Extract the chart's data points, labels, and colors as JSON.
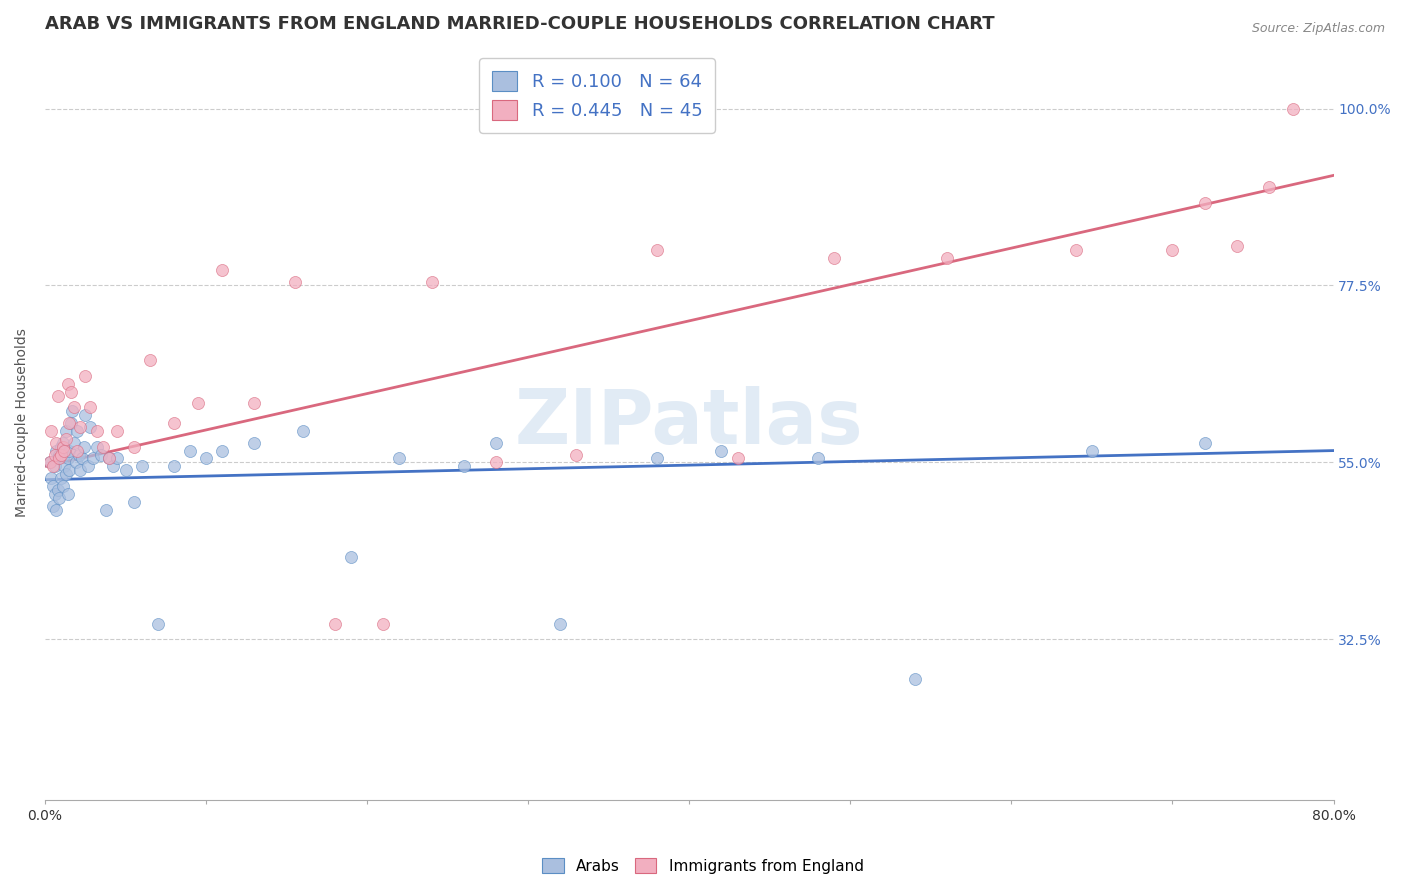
{
  "title": "ARAB VS IMMIGRANTS FROM ENGLAND MARRIED-COUPLE HOUSEHOLDS CORRELATION CHART",
  "source": "Source: ZipAtlas.com",
  "ylabel": "Married-couple Households",
  "ytick_labels": [
    "100.0%",
    "77.5%",
    "55.0%",
    "32.5%"
  ],
  "ytick_values": [
    1.0,
    0.775,
    0.55,
    0.325
  ],
  "xlim": [
    0.0,
    0.8
  ],
  "ylim": [
    0.12,
    1.08
  ],
  "watermark": "ZIPatlas",
  "legend_arab_R": 0.1,
  "legend_arab_N": 64,
  "legend_eng_R": 0.445,
  "legend_eng_N": 45,
  "arab_color": "#aabfdf",
  "arab_edge_color": "#5b8ec4",
  "england_color": "#f2afc0",
  "england_edge_color": "#d9687e",
  "arab_line_color": "#4472c4",
  "england_line_color": "#d9687e",
  "grid_color": "#cccccc",
  "background_color": "#ffffff",
  "title_fontsize": 13,
  "label_fontsize": 10,
  "tick_fontsize": 10,
  "legend_fontsize": 13,
  "watermark_color": "#c5d8ec",
  "watermark_fontsize": 55,
  "right_tick_color": "#4472c4",
  "arab_line_x0": 0.0,
  "arab_line_x1": 0.8,
  "arab_line_y0": 0.528,
  "arab_line_y1": 0.565,
  "eng_line_x0": 0.0,
  "eng_line_x1": 0.8,
  "eng_line_y0": 0.545,
  "eng_line_y1": 0.915,
  "arab_scatter_x": [
    0.003,
    0.004,
    0.005,
    0.005,
    0.006,
    0.006,
    0.007,
    0.007,
    0.008,
    0.008,
    0.009,
    0.009,
    0.01,
    0.01,
    0.011,
    0.011,
    0.012,
    0.012,
    0.013,
    0.013,
    0.014,
    0.014,
    0.015,
    0.015,
    0.016,
    0.017,
    0.018,
    0.019,
    0.02,
    0.021,
    0.022,
    0.023,
    0.024,
    0.025,
    0.027,
    0.028,
    0.03,
    0.032,
    0.035,
    0.038,
    0.04,
    0.042,
    0.045,
    0.05,
    0.055,
    0.06,
    0.07,
    0.08,
    0.09,
    0.1,
    0.11,
    0.13,
    0.16,
    0.19,
    0.22,
    0.26,
    0.28,
    0.32,
    0.38,
    0.42,
    0.48,
    0.54,
    0.65,
    0.72
  ],
  "arab_scatter_y": [
    0.55,
    0.53,
    0.52,
    0.495,
    0.545,
    0.51,
    0.565,
    0.49,
    0.555,
    0.515,
    0.56,
    0.505,
    0.57,
    0.53,
    0.575,
    0.52,
    0.545,
    0.56,
    0.59,
    0.535,
    0.555,
    0.51,
    0.565,
    0.54,
    0.6,
    0.615,
    0.575,
    0.55,
    0.59,
    0.56,
    0.54,
    0.555,
    0.57,
    0.61,
    0.545,
    0.595,
    0.555,
    0.57,
    0.56,
    0.49,
    0.555,
    0.545,
    0.555,
    0.54,
    0.5,
    0.545,
    0.345,
    0.545,
    0.565,
    0.555,
    0.565,
    0.575,
    0.59,
    0.43,
    0.555,
    0.545,
    0.575,
    0.345,
    0.555,
    0.565,
    0.555,
    0.275,
    0.565,
    0.575
  ],
  "eng_scatter_x": [
    0.003,
    0.004,
    0.005,
    0.006,
    0.007,
    0.008,
    0.009,
    0.01,
    0.011,
    0.012,
    0.013,
    0.014,
    0.015,
    0.016,
    0.018,
    0.02,
    0.022,
    0.025,
    0.028,
    0.032,
    0.036,
    0.04,
    0.045,
    0.055,
    0.065,
    0.08,
    0.095,
    0.11,
    0.13,
    0.155,
    0.18,
    0.21,
    0.24,
    0.28,
    0.33,
    0.38,
    0.43,
    0.49,
    0.56,
    0.64,
    0.7,
    0.72,
    0.74,
    0.76,
    0.775
  ],
  "eng_scatter_y": [
    0.55,
    0.59,
    0.545,
    0.56,
    0.575,
    0.635,
    0.555,
    0.56,
    0.57,
    0.565,
    0.58,
    0.65,
    0.6,
    0.64,
    0.62,
    0.565,
    0.595,
    0.66,
    0.62,
    0.59,
    0.57,
    0.555,
    0.59,
    0.57,
    0.68,
    0.6,
    0.625,
    0.795,
    0.625,
    0.78,
    0.345,
    0.345,
    0.78,
    0.55,
    0.56,
    0.82,
    0.555,
    0.81,
    0.81,
    0.82,
    0.82,
    0.88,
    0.825,
    0.9,
    1.0
  ],
  "scatter_size": 75,
  "scatter_alpha": 0.75,
  "scatter_lw": 0.5
}
